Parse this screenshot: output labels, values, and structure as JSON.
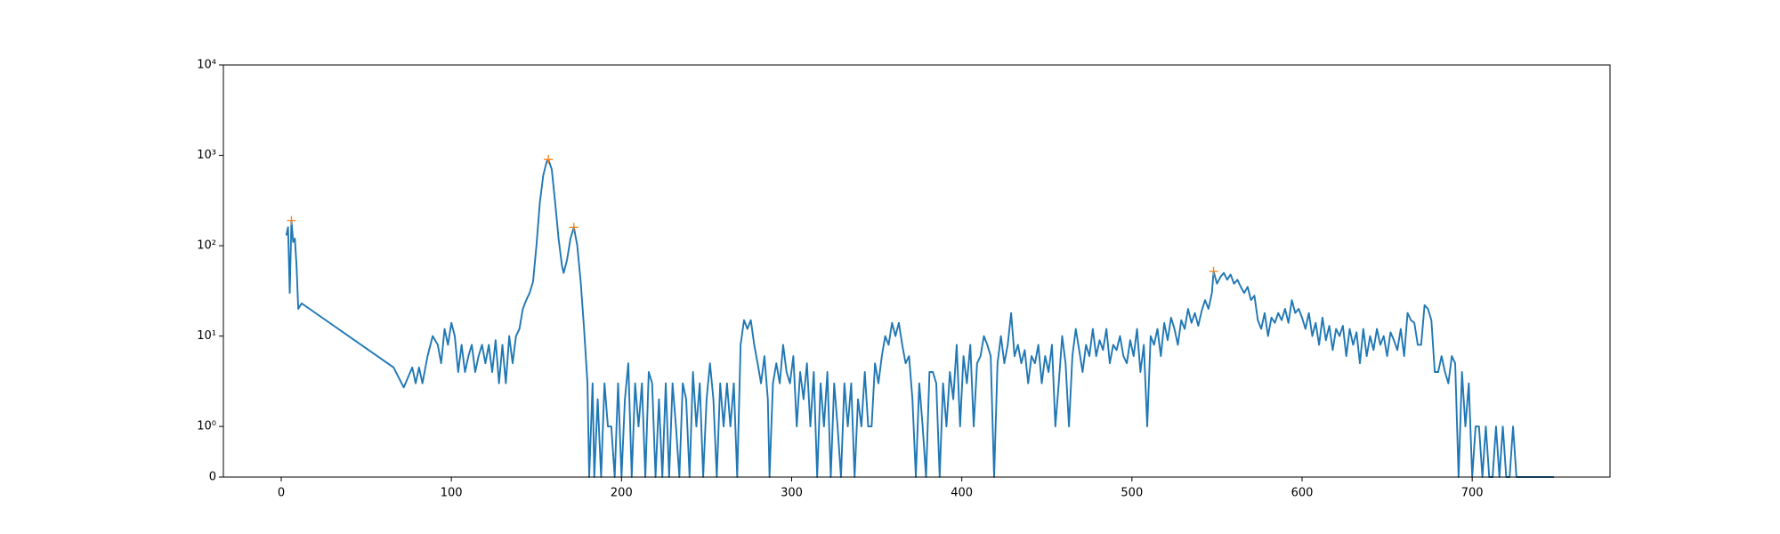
{
  "chart_data": {
    "type": "line",
    "yscale": "symlog",
    "xlim": [
      -34,
      781
    ],
    "xticks": [
      0,
      100,
      200,
      300,
      400,
      500,
      600,
      700
    ],
    "ylim": [
      0,
      10000
    ],
    "yticks": [
      0,
      {
        "value": 1,
        "label": "10⁰"
      },
      {
        "value": 10,
        "label": "10¹"
      },
      {
        "value": 100,
        "label": "10²"
      },
      {
        "value": 1000,
        "label": "10³"
      },
      {
        "value": 10000,
        "label": "10⁴"
      }
    ],
    "series": [
      {
        "color": "#1f77b4",
        "marker": "none",
        "x": [
          3,
          4,
          5,
          6,
          7,
          8,
          9,
          10,
          12,
          66,
          72,
          77,
          79,
          81,
          83,
          86,
          89,
          92,
          94,
          96,
          98,
          100,
          102,
          104,
          106,
          108,
          110,
          112,
          114,
          116,
          118,
          120,
          122,
          124,
          126,
          128,
          130,
          132,
          134,
          136,
          138,
          140,
          142,
          144,
          146,
          148,
          150,
          152,
          154,
          156,
          157,
          159,
          161,
          163,
          165,
          166,
          168,
          170,
          172,
          174,
          176,
          178,
          180,
          181,
          183,
          184,
          186,
          188,
          190,
          192,
          194,
          196,
          198,
          200,
          202,
          204,
          206,
          208,
          210,
          212,
          214,
          216,
          218,
          220,
          222,
          224,
          226,
          228,
          230,
          232,
          234,
          236,
          238,
          240,
          242,
          244,
          246,
          248,
          250,
          252,
          254,
          256,
          258,
          260,
          262,
          264,
          266,
          268,
          270,
          272,
          274,
          276,
          278,
          280,
          282,
          284,
          286,
          287,
          289,
          291,
          293,
          295,
          297,
          299,
          301,
          303,
          305,
          307,
          309,
          311,
          313,
          315,
          317,
          319,
          321,
          323,
          325,
          327,
          329,
          331,
          333,
          335,
          337,
          339,
          341,
          343,
          345,
          347,
          349,
          351,
          353,
          355,
          357,
          359,
          361,
          363,
          365,
          367,
          369,
          371,
          373,
          375,
          377,
          379,
          381,
          383,
          385,
          387,
          389,
          391,
          393,
          395,
          397,
          399,
          401,
          403,
          405,
          407,
          409,
          411,
          413,
          415,
          417,
          419,
          421,
          423,
          425,
          427,
          429,
          431,
          433,
          435,
          437,
          439,
          441,
          443,
          445,
          447,
          449,
          451,
          453,
          455,
          457,
          459,
          461,
          463,
          465,
          467,
          469,
          471,
          473,
          475,
          477,
          479,
          481,
          483,
          485,
          487,
          489,
          491,
          493,
          495,
          497,
          499,
          501,
          503,
          505,
          507,
          509,
          511,
          513,
          515,
          517,
          519,
          521,
          523,
          525,
          527,
          529,
          531,
          533,
          535,
          537,
          539,
          541,
          543,
          545,
          547,
          548,
          550,
          552,
          554,
          556,
          558,
          560,
          562,
          564,
          566,
          568,
          570,
          572,
          574,
          576,
          578,
          580,
          582,
          584,
          586,
          588,
          590,
          592,
          594,
          596,
          598,
          600,
          602,
          604,
          606,
          608,
          610,
          612,
          614,
          616,
          618,
          620,
          622,
          624,
          626,
          628,
          630,
          632,
          634,
          636,
          638,
          640,
          642,
          644,
          646,
          648,
          650,
          652,
          654,
          656,
          658,
          660,
          662,
          664,
          666,
          668,
          670,
          672,
          674,
          676,
          678,
          680,
          682,
          684,
          686,
          688,
          690,
          692,
          694,
          696,
          698,
          700,
          702,
          704,
          706,
          708,
          710,
          712,
          714,
          716,
          718,
          720,
          722,
          724,
          726,
          730,
          740,
          748
        ],
        "values": [
          130,
          160,
          30,
          190,
          110,
          120,
          60,
          20,
          23,
          4.5,
          2.7,
          4.5,
          3,
          4.5,
          3,
          6,
          10,
          8,
          5,
          12,
          8,
          14,
          10,
          4,
          8,
          4,
          6,
          8,
          4,
          6,
          8,
          5,
          8,
          4,
          9,
          3,
          8,
          3,
          10,
          5,
          10,
          12,
          20,
          25,
          30,
          40,
          100,
          300,
          600,
          850,
          900,
          700,
          300,
          120,
          60,
          50,
          70,
          120,
          160,
          100,
          40,
          12,
          3,
          0,
          3,
          0,
          2,
          0,
          3,
          1,
          1,
          0,
          3,
          0,
          2,
          5,
          0,
          3,
          1,
          3,
          0,
          4,
          3,
          0,
          2,
          0,
          3,
          0,
          3,
          1,
          0,
          3,
          2,
          0,
          4,
          1,
          3,
          0,
          2,
          5,
          2,
          0,
          3,
          1,
          3,
          1,
          3,
          0,
          8,
          15,
          12,
          15,
          8,
          5,
          3,
          6,
          2,
          0,
          3,
          5,
          3,
          8,
          4,
          3,
          6,
          1,
          4,
          2,
          5,
          1,
          4,
          0,
          3,
          1,
          4,
          0,
          3,
          1,
          0,
          3,
          1,
          3,
          0,
          2,
          1,
          4,
          1,
          1,
          5,
          3,
          6,
          10,
          8,
          14,
          10,
          14,
          8,
          5,
          6,
          2,
          0,
          3,
          1,
          0,
          4,
          4,
          3,
          0,
          3,
          1,
          4,
          2,
          8,
          1,
          6,
          3,
          8,
          1,
          5,
          6,
          10,
          8,
          6,
          0,
          5,
          10,
          5,
          8,
          18,
          6,
          8,
          5,
          7,
          3,
          6,
          5,
          8,
          3,
          6,
          4,
          8,
          1,
          3,
          10,
          5,
          1,
          6,
          12,
          7,
          4,
          8,
          6,
          12,
          6,
          9,
          7,
          12,
          5,
          8,
          7,
          10,
          6,
          5,
          9,
          6,
          12,
          4,
          8,
          1,
          10,
          8,
          12,
          6,
          14,
          9,
          16,
          12,
          8,
          15,
          12,
          20,
          14,
          18,
          13,
          19,
          25,
          20,
          30,
          52,
          38,
          45,
          50,
          42,
          48,
          38,
          42,
          35,
          30,
          35,
          25,
          28,
          15,
          12,
          18,
          10,
          16,
          14,
          18,
          15,
          20,
          14,
          25,
          18,
          20,
          16,
          12,
          18,
          10,
          14,
          8,
          16,
          9,
          13,
          7,
          12,
          10,
          13,
          6,
          12,
          8,
          11,
          5,
          12,
          6,
          10,
          7,
          12,
          8,
          10,
          6,
          11,
          9,
          7,
          12,
          6,
          18,
          15,
          14,
          8,
          8,
          22,
          20,
          15,
          4,
          4,
          6,
          4,
          3,
          6,
          5,
          0,
          4,
          1,
          3,
          0,
          1,
          1,
          0,
          1,
          0,
          0,
          1,
          0,
          1,
          0,
          0,
          1,
          0,
          0,
          0,
          0
        ]
      },
      {
        "color": "#ff7f0e",
        "marker": "+",
        "x": [
          6,
          157,
          172,
          548
        ],
        "values": [
          190,
          900,
          160,
          52
        ]
      }
    ]
  }
}
